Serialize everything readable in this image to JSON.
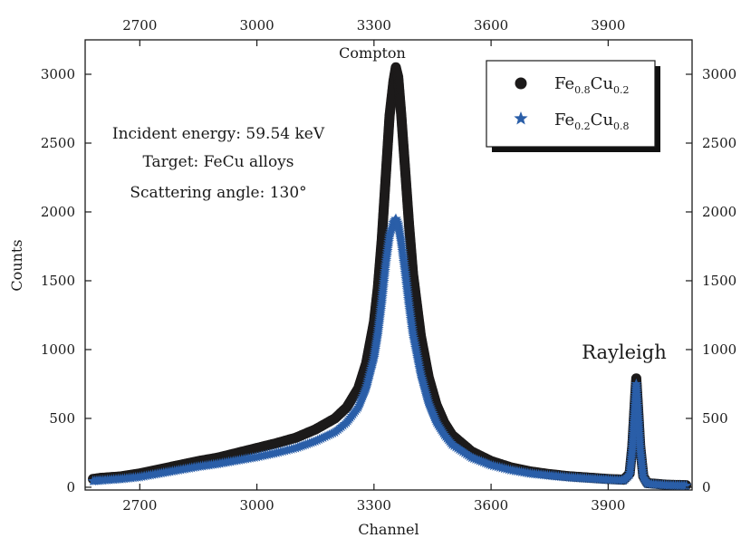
{
  "chart_data": {
    "type": "scatter",
    "xlabel": "Channel",
    "ylabel": "Counts",
    "xlim": [
      2560,
      4115
    ],
    "ylim": [
      -20,
      3250
    ],
    "x_ticks": [
      2700,
      3000,
      3300,
      3600,
      3900
    ],
    "y_ticks": [
      0,
      500,
      1000,
      1500,
      2000,
      2500,
      3000
    ],
    "x_tick_labels": [
      "2700",
      "3000",
      "3300",
      "3600",
      "3900"
    ],
    "y_tick_labels": [
      "0",
      "500",
      "1000",
      "1500",
      "2000",
      "2500",
      "3000"
    ],
    "top_axis_mirrored": true,
    "right_axis_mirrored": true,
    "grid": false,
    "legend_position": "top-right",
    "annotations": {
      "line1": "Incident energy: 59.54 keV",
      "line2": "Target: FeCu alloys",
      "line3": "Scattering angle: 130°",
      "compton": "Compton",
      "rayleigh": "Rayleigh"
    },
    "series": [
      {
        "name": "Fe0.8Cu0.2",
        "legend": {
          "base1": "Fe",
          "sub1": "0.8",
          "base2": "Cu",
          "sub2": "0.2"
        },
        "marker": "circle",
        "color": "#1c1a1a",
        "points": [
          [
            2580,
            60
          ],
          [
            2600,
            68
          ],
          [
            2650,
            78
          ],
          [
            2700,
            100
          ],
          [
            2750,
            130
          ],
          [
            2800,
            160
          ],
          [
            2850,
            190
          ],
          [
            2900,
            215
          ],
          [
            2950,
            250
          ],
          [
            3000,
            285
          ],
          [
            3050,
            320
          ],
          [
            3100,
            360
          ],
          [
            3150,
            420
          ],
          [
            3200,
            500
          ],
          [
            3230,
            580
          ],
          [
            3260,
            720
          ],
          [
            3280,
            900
          ],
          [
            3300,
            1200
          ],
          [
            3310,
            1450
          ],
          [
            3320,
            1800
          ],
          [
            3330,
            2250
          ],
          [
            3340,
            2700
          ],
          [
            3350,
            2950
          ],
          [
            3356,
            3050
          ],
          [
            3362,
            2980
          ],
          [
            3370,
            2700
          ],
          [
            3380,
            2300
          ],
          [
            3390,
            1900
          ],
          [
            3400,
            1550
          ],
          [
            3420,
            1100
          ],
          [
            3440,
            800
          ],
          [
            3460,
            600
          ],
          [
            3480,
            470
          ],
          [
            3500,
            380
          ],
          [
            3550,
            260
          ],
          [
            3600,
            190
          ],
          [
            3650,
            145
          ],
          [
            3700,
            115
          ],
          [
            3750,
            95
          ],
          [
            3800,
            80
          ],
          [
            3850,
            70
          ],
          [
            3900,
            60
          ],
          [
            3940,
            55
          ],
          [
            3955,
            100
          ],
          [
            3962,
            300
          ],
          [
            3968,
            600
          ],
          [
            3972,
            790
          ],
          [
            3976,
            600
          ],
          [
            3982,
            300
          ],
          [
            3990,
            80
          ],
          [
            4000,
            30
          ],
          [
            4050,
            18
          ],
          [
            4100,
            15
          ]
        ]
      },
      {
        "name": "Fe0.2Cu0.8",
        "legend": {
          "base1": "Fe",
          "sub1": "0.2",
          "base2": "Cu",
          "sub2": "0.8"
        },
        "marker": "star",
        "color": "#2a5ea8",
        "points": [
          [
            2580,
            45
          ],
          [
            2600,
            50
          ],
          [
            2650,
            60
          ],
          [
            2700,
            75
          ],
          [
            2750,
            100
          ],
          [
            2800,
            125
          ],
          [
            2850,
            150
          ],
          [
            2900,
            170
          ],
          [
            2950,
            195
          ],
          [
            3000,
            220
          ],
          [
            3050,
            250
          ],
          [
            3100,
            285
          ],
          [
            3150,
            335
          ],
          [
            3200,
            400
          ],
          [
            3230,
            470
          ],
          [
            3260,
            580
          ],
          [
            3280,
            720
          ],
          [
            3300,
            940
          ],
          [
            3310,
            1120
          ],
          [
            3320,
            1350
          ],
          [
            3330,
            1620
          ],
          [
            3340,
            1830
          ],
          [
            3350,
            1920
          ],
          [
            3356,
            1950
          ],
          [
            3362,
            1910
          ],
          [
            3370,
            1780
          ],
          [
            3380,
            1560
          ],
          [
            3390,
            1320
          ],
          [
            3400,
            1110
          ],
          [
            3420,
            820
          ],
          [
            3440,
            610
          ],
          [
            3460,
            470
          ],
          [
            3480,
            380
          ],
          [
            3500,
            310
          ],
          [
            3550,
            215
          ],
          [
            3600,
            160
          ],
          [
            3650,
            125
          ],
          [
            3700,
            100
          ],
          [
            3750,
            85
          ],
          [
            3800,
            72
          ],
          [
            3850,
            63
          ],
          [
            3900,
            55
          ],
          [
            3940,
            50
          ],
          [
            3955,
            90
          ],
          [
            3962,
            280
          ],
          [
            3968,
            560
          ],
          [
            3972,
            750
          ],
          [
            3976,
            560
          ],
          [
            3982,
            280
          ],
          [
            3990,
            70
          ],
          [
            4000,
            25
          ],
          [
            4050,
            15
          ],
          [
            4100,
            12
          ]
        ]
      }
    ]
  }
}
